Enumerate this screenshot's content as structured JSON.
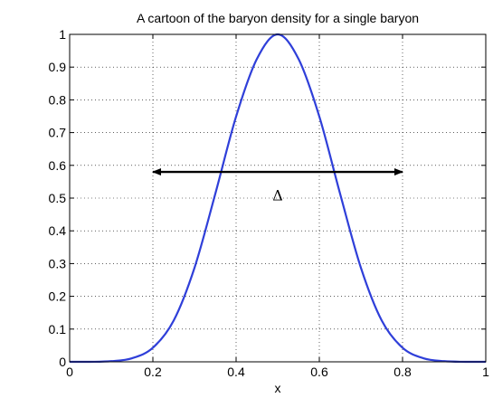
{
  "chart_data": {
    "type": "line",
    "title": "A cartoon of the baryon density for a single baryon",
    "xlabel": "x",
    "ylabel": "",
    "xlim": [
      0,
      1
    ],
    "ylim": [
      0,
      1
    ],
    "xticks": [
      "0",
      "0.2",
      "0.4",
      "0.6",
      "0.8",
      "1"
    ],
    "yticks": [
      "0",
      "0.1",
      "0.2",
      "0.3",
      "0.4",
      "0.5",
      "0.6",
      "0.7",
      "0.8",
      "0.9",
      "1"
    ],
    "grid": true,
    "series": [
      {
        "color": "#2f3fd9",
        "x": [
          0,
          0.05,
          0.1,
          0.15,
          0.2,
          0.25,
          0.3,
          0.35,
          0.4,
          0.45,
          0.5,
          0.55,
          0.6,
          0.65,
          0.7,
          0.75,
          0.8,
          0.85,
          0.9,
          0.95,
          1
        ],
        "y": [
          0.0,
          0.0,
          0.002,
          0.011,
          0.043,
          0.126,
          0.287,
          0.513,
          0.749,
          0.925,
          1.0,
          0.925,
          0.749,
          0.513,
          0.287,
          0.126,
          0.043,
          0.011,
          0.002,
          0.0,
          0.0
        ]
      }
    ],
    "annotations": [
      {
        "type": "double-arrow",
        "x_start": 0.2,
        "x_end": 0.8,
        "y": 0.58,
        "label": "Δ",
        "label_x": 0.5,
        "label_y": 0.51,
        "color": "#000000"
      }
    ]
  }
}
